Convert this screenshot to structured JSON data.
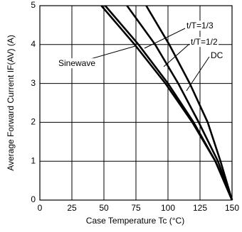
{
  "chart_data": {
    "type": "line",
    "xlabel": "Case Temperature   Tc (°C)",
    "ylabel": "Average Forward Current   IF(AV) (A)",
    "xlim": [
      0,
      150
    ],
    "ylim": [
      0,
      5
    ],
    "xticks": [
      0,
      25,
      50,
      75,
      100,
      125,
      150
    ],
    "yticks": [
      0,
      1,
      2,
      3,
      4,
      5
    ],
    "grid": true,
    "series": [
      {
        "name": "Sinewave",
        "color": "#000000",
        "x": [
          48,
          74,
          98,
          119,
          137,
          150
        ],
        "values": [
          5,
          4,
          3,
          2,
          1,
          0
        ]
      },
      {
        "name": "t/T=1/3",
        "color": "#000000",
        "x": [
          51,
          77,
          100,
          120,
          137,
          150
        ],
        "values": [
          5,
          4,
          3,
          2,
          1,
          0
        ]
      },
      {
        "name": "t/T=1/2",
        "color": "#000000",
        "x": [
          68,
          90,
          108,
          124,
          139,
          150
        ],
        "values": [
          5,
          4,
          3,
          2,
          1,
          0
        ]
      },
      {
        "name": "DC",
        "color": "#000000",
        "x": [
          83,
          101,
          117,
          131,
          141,
          150
        ],
        "values": [
          5,
          4,
          3,
          2,
          1,
          0
        ]
      }
    ]
  }
}
